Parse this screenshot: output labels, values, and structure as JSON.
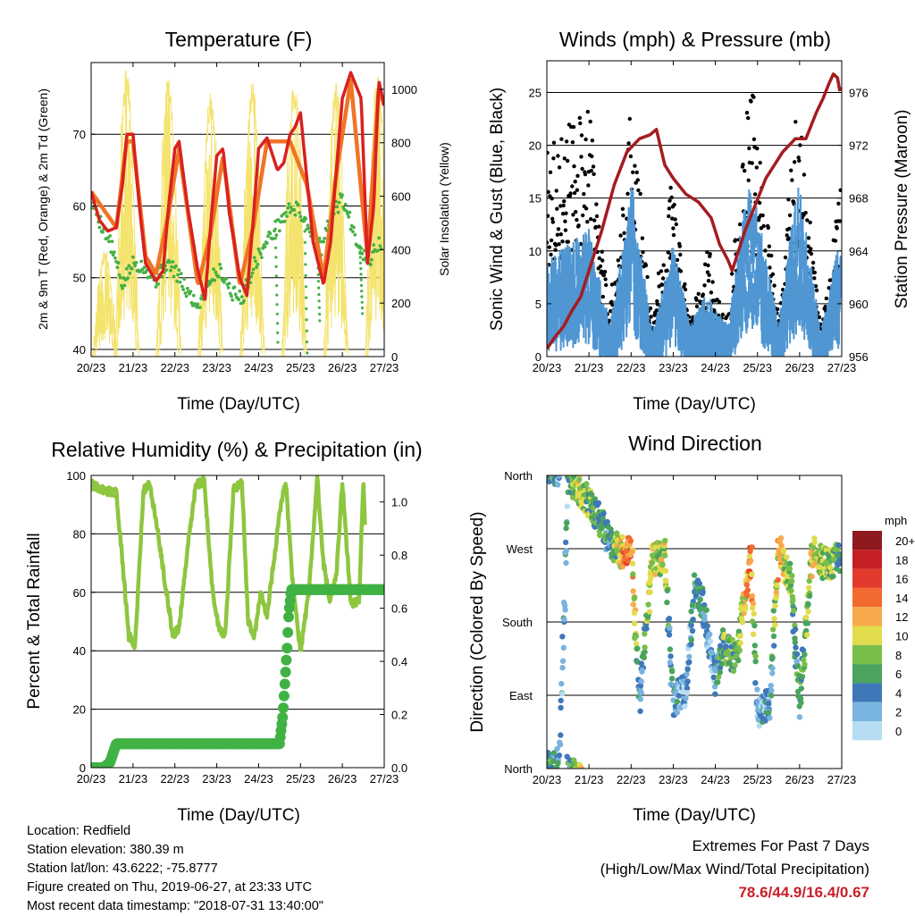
{
  "colors": {
    "t2m": "#d9211f",
    "t9m": "#f07426",
    "td": "#45b044",
    "solar": "#f4e36d",
    "gust": "#000000",
    "wind": "#4f96d3",
    "pressure": "#a41c20",
    "rh": "#8dc63f",
    "precip": "#40b244",
    "grid": "#000000"
  },
  "info": {
    "location": "Location: Redfield",
    "elevation": "Station elevation: 380.39 m",
    "latlon": "Station lat/lon: 43.6222; -75.8777",
    "created": "Figure created on Thu, 2019-06-27, at 23:33 UTC",
    "recent": "Most recent data timestamp: \"2018-07-31 13:40:00\""
  },
  "extremes": {
    "title": "Extremes For Past 7 Days",
    "subtitle": "(High/Low/Max Wind/Total Precipitation)",
    "values": "78.6/44.9/16.4/0.67"
  },
  "chart_data": [
    {
      "type": "line",
      "title": "Temperature (F)",
      "xlabel": "Time (Day/UTC)",
      "ylabel": "2m & 9m T (Red, Orange) & 2m Td (Green)",
      "ylabel_right": "Solar Insolation (Yellow)",
      "x_ticks": [
        "20/23",
        "21/23",
        "22/23",
        "23/23",
        "24/23",
        "25/23",
        "26/23",
        "27/23"
      ],
      "xlim": [
        0,
        7
      ],
      "ylim": [
        39,
        80
      ],
      "y_ticks": [
        40,
        50,
        60,
        70
      ],
      "ylim_right": [
        0,
        1100
      ],
      "y_ticks_right": [
        0,
        200,
        400,
        600,
        800,
        1000
      ],
      "grid": "horizontal",
      "series": [
        {
          "name": "2m T",
          "color_key": "t2m",
          "x": [
            0,
            0.2,
            0.4,
            0.6,
            0.75,
            0.85,
            1.0,
            1.15,
            1.3,
            1.55,
            1.72,
            1.85,
            2.0,
            2.1,
            2.3,
            2.55,
            2.72,
            2.85,
            3.0,
            3.15,
            3.3,
            3.55,
            3.72,
            3.87,
            4.0,
            4.2,
            4.45,
            4.6,
            4.75,
            4.87,
            5.0,
            5.15,
            5.3,
            5.55,
            5.72,
            5.87,
            6.0,
            6.2,
            6.45,
            6.6,
            6.75,
            6.87,
            7.0
          ],
          "values": [
            62,
            58,
            56.5,
            57,
            63,
            70,
            70,
            60,
            52,
            49.5,
            51,
            60,
            68,
            69,
            60,
            51,
            47,
            57,
            67,
            68,
            59,
            50,
            47.5,
            58,
            68,
            69.5,
            65,
            66,
            70,
            71,
            73,
            64,
            55,
            49,
            55,
            66,
            75,
            78.6,
            75,
            52,
            60,
            77.5,
            74
          ]
        },
        {
          "name": "9m T",
          "color_key": "t9m",
          "x": [
            0,
            0.6,
            0.85,
            1.0,
            1.3,
            1.55,
            1.85,
            2.1,
            2.55,
            2.85,
            3.15,
            3.55,
            3.87,
            4.2,
            4.75,
            5.15,
            5.55,
            5.87,
            6.2,
            6.6,
            6.87,
            7.0
          ],
          "values": [
            62,
            57,
            69,
            69,
            53,
            50.5,
            59,
            68,
            49,
            56,
            67,
            49,
            57,
            69,
            69,
            63,
            50,
            65,
            77.5,
            53,
            76.5,
            74
          ]
        },
        {
          "name": "2m Td",
          "color_key": "td",
          "x": [
            0,
            0.2,
            0.45,
            0.75,
            1.0,
            1.3,
            1.55,
            1.8,
            2.0,
            2.3,
            2.55,
            2.85,
            3.1,
            3.35,
            3.6,
            3.9,
            4.1,
            4.3,
            4.55,
            4.8,
            5.0,
            5.2,
            5.5,
            5.75,
            6.0,
            6.3,
            6.6,
            6.9,
            7.0
          ],
          "values": [
            61,
            58,
            55,
            49,
            52,
            51.5,
            49.5,
            52,
            51,
            48,
            46,
            50,
            51,
            48,
            47,
            52,
            54,
            56,
            58,
            60,
            59,
            57,
            54,
            59,
            61,
            56,
            52,
            55,
            54
          ]
        },
        {
          "name": "Solar",
          "color_key": "solar",
          "axis": "right",
          "peaks": [
            {
              "day": 0.33,
              "value": 400
            },
            {
              "day": 0.85,
              "value": 1090
            },
            {
              "day": 1.85,
              "value": 1060
            },
            {
              "day": 2.85,
              "value": 1000
            },
            {
              "day": 3.85,
              "value": 1040
            },
            {
              "day": 4.85,
              "value": 1050
            },
            {
              "day": 5.85,
              "value": 1030
            },
            {
              "day": 6.85,
              "value": 1060
            }
          ]
        }
      ]
    },
    {
      "type": "scatter",
      "title": "Winds (mph) & Pressure (mb)",
      "xlabel": "Time (Day/UTC)",
      "ylabel": "Sonic Wind & Gust (Blue, Black)",
      "ylabel_right": "Station Pressure (Maroon)",
      "x_ticks": [
        "20/23",
        "21/23",
        "22/23",
        "23/23",
        "24/23",
        "25/23",
        "26/23",
        "27/23"
      ],
      "xlim": [
        0,
        7
      ],
      "ylim": [
        0,
        28
      ],
      "y_ticks": [
        0,
        5,
        10,
        15,
        20,
        25
      ],
      "ylim_right": [
        956,
        978.4
      ],
      "y_ticks_right": [
        956,
        960,
        964,
        968,
        972,
        976
      ],
      "grid": "horizontal",
      "series": [
        {
          "name": "Gust",
          "color_key": "gust",
          "x": [
            0,
            0.5,
            1.0,
            1.5,
            1.8,
            2.0,
            2.5,
            3.0,
            3.4,
            3.8,
            4.0,
            4.3,
            4.6,
            4.85,
            5.0,
            5.5,
            5.8,
            6.0,
            6.5,
            7.0
          ],
          "values": [
            14,
            15,
            16,
            3,
            10,
            17,
            2,
            12,
            2,
            8,
            4,
            2,
            12,
            18,
            15,
            2,
            14,
            16,
            2,
            11
          ]
        },
        {
          "name": "Sonic Wind",
          "color_key": "wind",
          "x": [
            0,
            0.5,
            1.0,
            1.5,
            1.8,
            2.0,
            2.5,
            3.0,
            3.4,
            3.8,
            4.0,
            4.3,
            4.6,
            4.85,
            5.0,
            5.5,
            5.8,
            6.0,
            6.5,
            7.0
          ],
          "values": [
            5,
            6,
            7,
            1,
            6,
            10,
            0.5,
            6,
            1,
            3,
            2,
            1,
            7,
            10,
            8,
            1,
            7,
            10,
            0.5,
            7
          ]
        },
        {
          "name": "Pressure",
          "color_key": "pressure",
          "axis": "right",
          "x": [
            0,
            0.2,
            0.4,
            0.6,
            0.8,
            1.0,
            1.3,
            1.6,
            1.9,
            2.2,
            2.45,
            2.6,
            2.8,
            3.0,
            3.3,
            3.6,
            3.9,
            4.1,
            4.3,
            4.4,
            4.5,
            4.7,
            4.95,
            5.2,
            5.4,
            5.6,
            5.9,
            6.15,
            6.4,
            6.55,
            6.7,
            6.8,
            6.9,
            6.95,
            7.0
          ],
          "values": [
            956.6,
            957.5,
            958.3,
            959.5,
            960.5,
            962.5,
            965.5,
            969,
            971.5,
            972.5,
            972.8,
            973.2,
            970.5,
            969.5,
            968.3,
            967.7,
            966.5,
            964.5,
            963.3,
            962.5,
            963.5,
            965.5,
            967.5,
            969.5,
            970.5,
            971.5,
            972.5,
            972.5,
            974.5,
            975.5,
            976.7,
            977.4,
            977.1,
            976.2,
            976.3
          ]
        }
      ]
    },
    {
      "type": "line",
      "title": "Relative Humidity (%) & Precipitation (in)",
      "xlabel": "Time (Day/UTC)",
      "ylabel": "Percent & Total Rainfall",
      "x_ticks": [
        "20/23",
        "21/23",
        "22/23",
        "23/23",
        "24/23",
        "25/23",
        "26/23",
        "27/23"
      ],
      "xlim": [
        0,
        7
      ],
      "ylim": [
        0,
        100
      ],
      "y_ticks": [
        0,
        20,
        40,
        60,
        80,
        100
      ],
      "ylim_right": [
        0,
        1.1
      ],
      "y_ticks_right": [
        "0.0",
        "0.2",
        "0.4",
        "0.6",
        "0.8",
        "1.0"
      ],
      "grid": "horizontal",
      "series": [
        {
          "name": "RH",
          "color_key": "rh",
          "x": [
            0,
            0.3,
            0.6,
            0.75,
            0.9,
            1.05,
            1.25,
            1.4,
            1.6,
            1.8,
            1.95,
            2.1,
            2.3,
            2.5,
            2.7,
            2.9,
            3.05,
            3.2,
            3.4,
            3.6,
            3.75,
            3.9,
            4.05,
            4.2,
            4.4,
            4.55,
            4.65,
            4.8,
            5.0,
            5.2,
            5.4,
            5.55,
            5.7,
            5.85,
            6.0,
            6.2,
            6.4,
            6.5,
            6.55
          ],
          "values": [
            97,
            95,
            94,
            70,
            45,
            42,
            95,
            97,
            80,
            60,
            45,
            48,
            75,
            97,
            98,
            60,
            48,
            45,
            95,
            98,
            50,
            45,
            60,
            52,
            75,
            92,
            98,
            65,
            40,
            60,
            99,
            70,
            57,
            65,
            98,
            56,
            57,
            98,
            80
          ]
        },
        {
          "name": "Precipitation",
          "color_key": "precip",
          "axis": "right",
          "x": [
            0,
            0.3,
            0.45,
            0.6,
            0.9,
            4.5,
            4.58,
            4.62,
            4.68,
            4.72,
            4.78,
            6.5,
            7.0
          ],
          "values": [
            0,
            0,
            0.02,
            0.09,
            0.09,
            0.09,
            0.2,
            0.3,
            0.45,
            0.58,
            0.67,
            0.67,
            0.67
          ]
        }
      ]
    },
    {
      "type": "scatter",
      "title": "Wind Direction",
      "xlabel": "Time (Day/UTC)",
      "ylabel": "Direction (Colored By Speed)",
      "x_ticks": [
        "20/23",
        "21/23",
        "22/23",
        "23/23",
        "24/23",
        "25/23",
        "26/23",
        "27/23"
      ],
      "xlim": [
        0,
        7
      ],
      "y_labels": [
        "North",
        "West",
        "South",
        "East",
        "North"
      ],
      "y_values": [
        360,
        270,
        180,
        90,
        0
      ],
      "ylim": [
        0,
        360
      ],
      "grid": "horizontal",
      "legend": {
        "title": "mph",
        "labels": [
          "20+",
          "18",
          "16",
          "14",
          "12",
          "10",
          "8",
          "6",
          "4",
          "2",
          "0"
        ],
        "colors": [
          "#8e1a1e",
          "#c52026",
          "#e23b2d",
          "#f26a30",
          "#f8a94b",
          "#e1dc4c",
          "#77bf4a",
          "#4aa45d",
          "#3f78b9",
          "#79b3df",
          "#b6ddf3"
        ]
      },
      "series": [
        {
          "name": "Direction",
          "x": [
            0.1,
            0.3,
            0.5,
            0.7,
            0.9,
            1.1,
            1.3,
            1.5,
            1.8,
            2.0,
            2.2,
            2.5,
            2.8,
            3.0,
            3.3,
            3.5,
            3.7,
            4.0,
            4.2,
            4.5,
            4.85,
            5.0,
            5.3,
            5.5,
            5.8,
            6.0,
            6.3,
            6.6,
            6.8,
            7.0
          ],
          "values": [
            8,
            5,
            355,
            350,
            335,
            320,
            300,
            275,
            265,
            270,
            85,
            255,
            260,
            85,
            95,
            220,
            200,
            110,
            150,
            135,
            265,
            70,
            80,
            270,
            230,
            80,
            265,
            250,
            255,
            260
          ],
          "speed": [
            5,
            3,
            4,
            9,
            8,
            7,
            6,
            4,
            12,
            14,
            3,
            10,
            9,
            3,
            2,
            5,
            4,
            3,
            7,
            6,
            14,
            2,
            3,
            12,
            7,
            4,
            10,
            8,
            7,
            6
          ]
        }
      ]
    }
  ]
}
